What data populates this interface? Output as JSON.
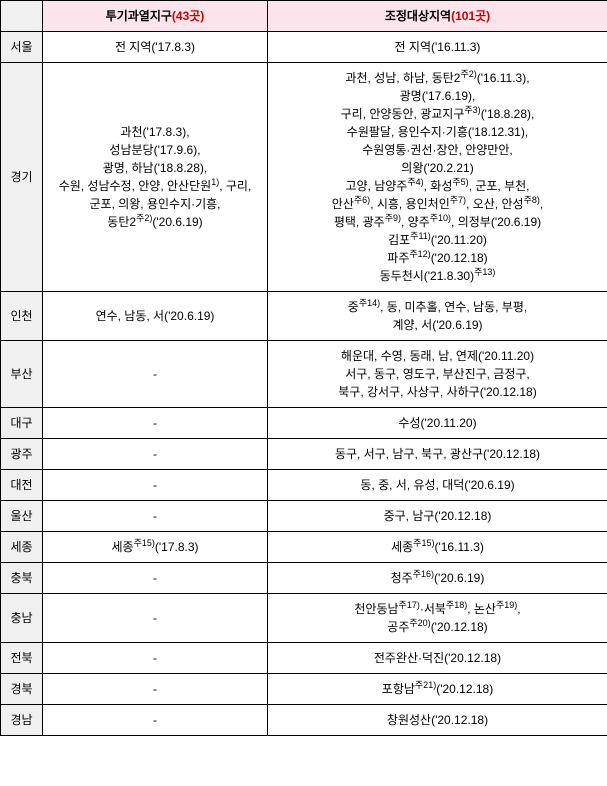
{
  "headers": {
    "col1_label": "투기과열지구",
    "col1_count": "(43곳)",
    "col2_label": "조정대상지역",
    "col2_count": "(101곳)"
  },
  "rows": [
    {
      "region": "서울",
      "col1": "전 지역('17.8.3)",
      "col2": "전 지역('16.11.3)"
    },
    {
      "region": "경기",
      "col1": "과천('17.8.3),<br>성남분당('17.9.6),<br>광명, 하남('18.8.28),<br>수원, 성남수정, 안양, 안산단원<sup>1)</sup>, 구리,<br>군포, 의왕, 용인수지·기흥,<br>동탄2<sup>주2)</sup>('20.6.19)",
      "col2": "과천, 성남, 하남, 동탄2<sup>주2)</sup>('16.11.3),<br>광명('17.6.19),<br>구리, 안양동안, 광교지구<sup>주3)</sup>('18.8.28),<br>수원팔달, 용인수지·기흥('18.12.31),<br>수원영통·권선·장안, 안양만안,<br>의왕('20.2.21)<br>고양, 남양주<sup>주4)</sup>, 화성<sup>주5)</sup>, 군포, 부천,<br>안산<sup>주6)</sup>, 시흥, 용인처인<sup>주7)</sup>, 오산, 안성<sup>주8)</sup>,<br>평택, 광주<sup>주9)</sup>, 양주<sup>주10)</sup>, 의정부('20.6.19)<br>김포<sup>주11)</sup>('20.11.20)<br>파주<sup>주12)</sup>('20.12.18)<br>동두천시('21.8.30)<sup>주13)</sup>"
    },
    {
      "region": "인천",
      "col1": "연수, 남동, 서('20.6.19)",
      "col2": "중<sup>주14)</sup>, 동, 미추홀, 연수, 남동, 부평,<br>계양, 서('20.6.19)"
    },
    {
      "region": "부산",
      "col1": "-",
      "col2": "해운대, 수영, 동래, 남, 연제('20.11.20)<br>서구, 동구, 영도구, 부산진구, 금정구,<br>북구, 강서구, 사상구, 사하구('20.12.18)"
    },
    {
      "region": "대구",
      "col1": "-",
      "col2": "수성('20.11.20)"
    },
    {
      "region": "광주",
      "col1": "-",
      "col2": "동구, 서구, 남구, 북구, 광산구('20.12.18)"
    },
    {
      "region": "대전",
      "col1": "-",
      "col2": "동, 중, 서, 유성, 대덕('20.6.19)"
    },
    {
      "region": "울산",
      "col1": "-",
      "col2": "중구, 남구('20.12.18)"
    },
    {
      "region": "세종",
      "col1": "세종<sup>주15)</sup>('17.8.3)",
      "col2": "세종<sup>주15)</sup>('16.11.3)"
    },
    {
      "region": "충북",
      "col1": "-",
      "col2": "청주<sup>주16)</sup>('20.6.19)"
    },
    {
      "region": "충남",
      "col1": "-",
      "col2": "천안동남<sup>주17)</sup>·서북<sup>주18)</sup>, 논산<sup>주19)</sup>,<br>공주<sup>주20)</sup>('20.12.18)"
    },
    {
      "region": "전북",
      "col1": "-",
      "col2": "전주완산·덕진('20.12.18)"
    },
    {
      "region": "경북",
      "col1": "-",
      "col2": "포항남<sup>주21)</sup>('20.12.18)"
    },
    {
      "region": "경남",
      "col1": "-",
      "col2": "창원성산('20.12.18)"
    }
  ]
}
